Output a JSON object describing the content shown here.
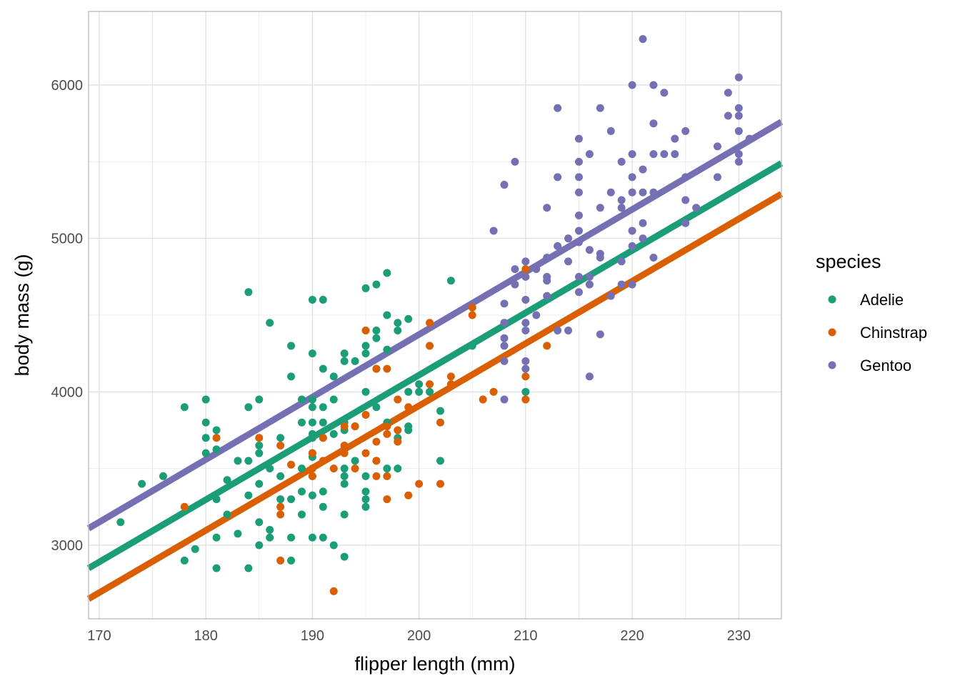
{
  "chart_data": {
    "type": "scatter",
    "title": "",
    "xlabel": "flipper length (mm)",
    "ylabel": "body mass (g)",
    "xlim": [
      169,
      234
    ],
    "ylim": [
      2520,
      6480
    ],
    "x_ticks": [
      170,
      180,
      190,
      200,
      210,
      220,
      230
    ],
    "y_ticks": [
      3000,
      4000,
      5000,
      6000
    ],
    "grid": true,
    "legend": {
      "title": "species",
      "position": "right"
    },
    "series": [
      {
        "name": "Adelie",
        "color": "#1b9e77",
        "fit": {
          "x": [
            169,
            234
          ],
          "y": [
            2850,
            5490
          ]
        },
        "points": [
          [
            172,
            3150
          ],
          [
            174,
            3400
          ],
          [
            176,
            3450
          ],
          [
            178,
            3900
          ],
          [
            178,
            2900
          ],
          [
            179,
            2975
          ],
          [
            180,
            3950
          ],
          [
            180,
            3800
          ],
          [
            180,
            3700
          ],
          [
            180,
            3600
          ],
          [
            181,
            3750
          ],
          [
            181,
            3625
          ],
          [
            181,
            3300
          ],
          [
            181,
            3050
          ],
          [
            181,
            2850
          ],
          [
            182,
            3425
          ],
          [
            182,
            3200
          ],
          [
            183,
            3550
          ],
          [
            183,
            3075
          ],
          [
            184,
            4650
          ],
          [
            184,
            3900
          ],
          [
            184,
            3550
          ],
          [
            184,
            3325
          ],
          [
            184,
            2850
          ],
          [
            185,
            3950
          ],
          [
            185,
            3650
          ],
          [
            185,
            3600
          ],
          [
            185,
            3400
          ],
          [
            185,
            3150
          ],
          [
            185,
            3000
          ],
          [
            186,
            4450
          ],
          [
            186,
            3500
          ],
          [
            186,
            3100
          ],
          [
            186,
            3050
          ],
          [
            187,
            3700
          ],
          [
            187,
            3450
          ],
          [
            187,
            3300
          ],
          [
            188,
            4300
          ],
          [
            188,
            4100
          ],
          [
            188,
            3300
          ],
          [
            188,
            3050
          ],
          [
            188,
            2900
          ],
          [
            189,
            3950
          ],
          [
            189,
            3800
          ],
          [
            189,
            3500
          ],
          [
            189,
            3350
          ],
          [
            189,
            3200
          ],
          [
            190,
            4600
          ],
          [
            190,
            4250
          ],
          [
            190,
            3950
          ],
          [
            190,
            3900
          ],
          [
            190,
            3800
          ],
          [
            190,
            3725
          ],
          [
            190,
            3700
          ],
          [
            190,
            3600
          ],
          [
            190,
            3575
          ],
          [
            190,
            3450
          ],
          [
            190,
            3325
          ],
          [
            190,
            3050
          ],
          [
            191,
            4600
          ],
          [
            191,
            4150
          ],
          [
            191,
            3900
          ],
          [
            191,
            3800
          ],
          [
            191,
            3700
          ],
          [
            191,
            3350
          ],
          [
            191,
            3250
          ],
          [
            191,
            3050
          ],
          [
            192,
            4100
          ],
          [
            192,
            3950
          ],
          [
            192,
            3725
          ],
          [
            192,
            3000
          ],
          [
            193,
            4250
          ],
          [
            193,
            4200
          ],
          [
            193,
            3800
          ],
          [
            193,
            3750
          ],
          [
            193,
            3500
          ],
          [
            193,
            3450
          ],
          [
            193,
            3400
          ],
          [
            193,
            3200
          ],
          [
            193,
            2925
          ],
          [
            194,
            4200
          ],
          [
            194,
            3775
          ],
          [
            194,
            3550
          ],
          [
            195,
            4675
          ],
          [
            195,
            4300
          ],
          [
            195,
            4250
          ],
          [
            195,
            4000
          ],
          [
            195,
            3450
          ],
          [
            195,
            3350
          ],
          [
            195,
            3300
          ],
          [
            195,
            3250
          ],
          [
            196,
            4700
          ],
          [
            196,
            4400
          ],
          [
            196,
            4350
          ],
          [
            196,
            4150
          ],
          [
            196,
            3900
          ],
          [
            196,
            3550
          ],
          [
            197,
            4775
          ],
          [
            197,
            4500
          ],
          [
            197,
            4275
          ],
          [
            197,
            3800
          ],
          [
            197,
            3500
          ],
          [
            198,
            4450
          ],
          [
            198,
            4400
          ],
          [
            198,
            3700
          ],
          [
            198,
            3500
          ],
          [
            199,
            4475
          ],
          [
            199,
            4000
          ],
          [
            199,
            3775
          ],
          [
            199,
            3750
          ],
          [
            200,
            4050
          ],
          [
            200,
            4000
          ],
          [
            201,
            4000
          ],
          [
            202,
            3875
          ],
          [
            202,
            3550
          ],
          [
            203,
            4725
          ],
          [
            205,
            4300
          ],
          [
            208,
            4450
          ],
          [
            210,
            4000
          ]
        ]
      },
      {
        "name": "Chinstrap",
        "color": "#d95f02",
        "fit": {
          "x": [
            169,
            234
          ],
          "y": [
            2650,
            5290
          ]
        },
        "points": [
          [
            178,
            3250
          ],
          [
            181,
            3700
          ],
          [
            185,
            3700
          ],
          [
            187,
            3650
          ],
          [
            187,
            3250
          ],
          [
            187,
            3200
          ],
          [
            187,
            2900
          ],
          [
            188,
            3525
          ],
          [
            190,
            3600
          ],
          [
            190,
            3500
          ],
          [
            190,
            3450
          ],
          [
            191,
            3700
          ],
          [
            191,
            3550
          ],
          [
            192,
            3500
          ],
          [
            192,
            2700
          ],
          [
            193,
            3775
          ],
          [
            193,
            3650
          ],
          [
            193,
            3600
          ],
          [
            194,
            3775
          ],
          [
            194,
            3500
          ],
          [
            195,
            4400
          ],
          [
            195,
            3850
          ],
          [
            195,
            3600
          ],
          [
            196,
            4150
          ],
          [
            196,
            3675
          ],
          [
            196,
            3550
          ],
          [
            196,
            3450
          ],
          [
            197,
            4150
          ],
          [
            197,
            3775
          ],
          [
            197,
            3725
          ],
          [
            197,
            3450
          ],
          [
            197,
            3300
          ],
          [
            198,
            3950
          ],
          [
            198,
            3750
          ],
          [
            198,
            3675
          ],
          [
            199,
            3900
          ],
          [
            199,
            3325
          ],
          [
            200,
            3400
          ],
          [
            201,
            4450
          ],
          [
            201,
            4300
          ],
          [
            201,
            4050
          ],
          [
            202,
            3800
          ],
          [
            202,
            3400
          ],
          [
            203,
            4100
          ],
          [
            203,
            4050
          ],
          [
            205,
            4550
          ],
          [
            205,
            4500
          ],
          [
            206,
            3950
          ],
          [
            207,
            4000
          ],
          [
            210,
            4800
          ],
          [
            210,
            4100
          ],
          [
            210,
            3950
          ],
          [
            212,
            4300
          ]
        ]
      },
      {
        "name": "Gentoo",
        "color": "#7570b3",
        "fit": {
          "x": [
            169,
            234
          ],
          "y": [
            3110,
            5760
          ]
        },
        "points": [
          [
            207,
            5050
          ],
          [
            208,
            5350
          ],
          [
            208,
            4575
          ],
          [
            208,
            4450
          ],
          [
            208,
            4350
          ],
          [
            208,
            4300
          ],
          [
            208,
            4200
          ],
          [
            208,
            3950
          ],
          [
            209,
            5500
          ],
          [
            209,
            4800
          ],
          [
            209,
            4700
          ],
          [
            210,
            4850
          ],
          [
            210,
            4750
          ],
          [
            210,
            4600
          ],
          [
            210,
            4450
          ],
          [
            210,
            4400
          ],
          [
            210,
            4200
          ],
          [
            210,
            4150
          ],
          [
            211,
            4800
          ],
          [
            211,
            4500
          ],
          [
            212,
            5200
          ],
          [
            212,
            4875
          ],
          [
            212,
            4750
          ],
          [
            212,
            4725
          ],
          [
            212,
            4625
          ],
          [
            213,
            5850
          ],
          [
            213,
            5400
          ],
          [
            213,
            4950
          ],
          [
            213,
            4400
          ],
          [
            214,
            5000
          ],
          [
            214,
            4850
          ],
          [
            214,
            4400
          ],
          [
            215,
            5650
          ],
          [
            215,
            5500
          ],
          [
            215,
            5400
          ],
          [
            215,
            5300
          ],
          [
            215,
            5150
          ],
          [
            215,
            5050
          ],
          [
            215,
            4975
          ],
          [
            215,
            4750
          ],
          [
            215,
            4650
          ],
          [
            216,
            5550
          ],
          [
            216,
            4925
          ],
          [
            216,
            4750
          ],
          [
            216,
            4700
          ],
          [
            216,
            4100
          ],
          [
            217,
            5850
          ],
          [
            217,
            5200
          ],
          [
            217,
            4900
          ],
          [
            217,
            4875
          ],
          [
            217,
            4375
          ],
          [
            218,
            5700
          ],
          [
            218,
            5300
          ],
          [
            218,
            4625
          ],
          [
            219,
            5500
          ],
          [
            219,
            5250
          ],
          [
            219,
            5200
          ],
          [
            219,
            4850
          ],
          [
            219,
            4700
          ],
          [
            220,
            6000
          ],
          [
            220,
            5550
          ],
          [
            220,
            5400
          ],
          [
            220,
            5300
          ],
          [
            220,
            5050
          ],
          [
            220,
            4950
          ],
          [
            220,
            4700
          ],
          [
            221,
            6300
          ],
          [
            221,
            5450
          ],
          [
            221,
            5300
          ],
          [
            221,
            5100
          ],
          [
            221,
            5000
          ],
          [
            222,
            6000
          ],
          [
            222,
            5750
          ],
          [
            222,
            5550
          ],
          [
            222,
            5300
          ],
          [
            222,
            4875
          ],
          [
            223,
            5950
          ],
          [
            223,
            5550
          ],
          [
            224,
            5650
          ],
          [
            224,
            5550
          ],
          [
            225,
            5700
          ],
          [
            225,
            5400
          ],
          [
            225,
            5250
          ],
          [
            225,
            5100
          ],
          [
            226,
            5200
          ],
          [
            228,
            5600
          ],
          [
            228,
            5400
          ],
          [
            229,
            5950
          ],
          [
            229,
            5800
          ],
          [
            230,
            6050
          ],
          [
            230,
            5850
          ],
          [
            230,
            5800
          ],
          [
            230,
            5700
          ],
          [
            230,
            5550
          ],
          [
            230,
            5500
          ],
          [
            231,
            5650
          ]
        ]
      }
    ]
  }
}
